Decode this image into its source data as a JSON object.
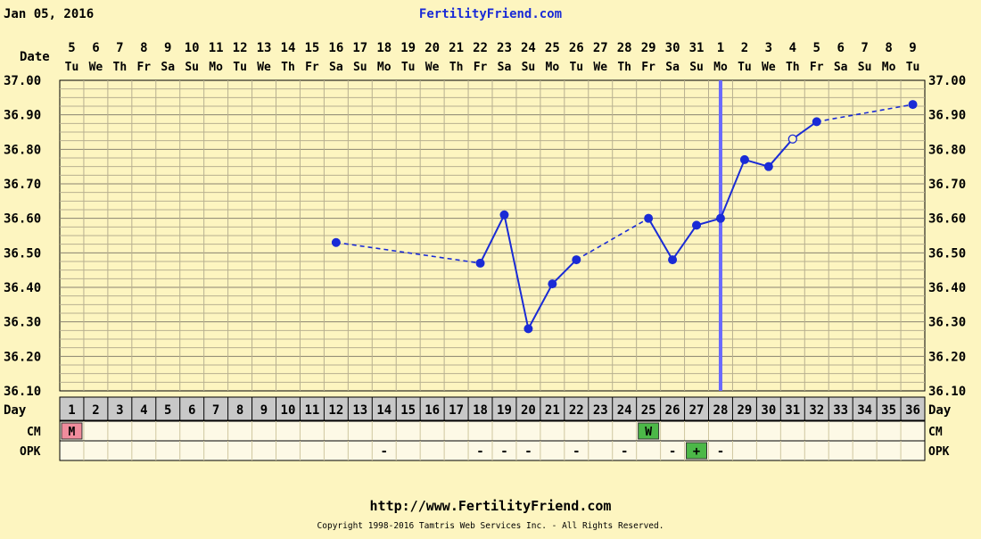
{
  "header": {
    "date": "Jan 05, 2016",
    "site": "FertilityFriend.com"
  },
  "footer": {
    "url": "http://www.FertilityFriend.com",
    "copyright": "Copyright 1998-2016 Tamtris Web Services Inc. - All Rights Reserved."
  },
  "chart_data": {
    "type": "line",
    "title": "",
    "row_labels": {
      "date": "Date",
      "day": "Day",
      "cm": "CM",
      "opk": "OPK"
    },
    "dates": [
      "5",
      "6",
      "7",
      "8",
      "9",
      "10",
      "11",
      "12",
      "13",
      "14",
      "15",
      "16",
      "17",
      "18",
      "19",
      "20",
      "21",
      "22",
      "23",
      "24",
      "25",
      "26",
      "27",
      "28",
      "29",
      "30",
      "31",
      "1",
      "2",
      "3",
      "4",
      "5",
      "6",
      "7",
      "8",
      "9"
    ],
    "weekdays": [
      "Tu",
      "We",
      "Th",
      "Fr",
      "Sa",
      "Su",
      "Mo",
      "Tu",
      "We",
      "Th",
      "Fr",
      "Sa",
      "Su",
      "Mo",
      "Tu",
      "We",
      "Th",
      "Fr",
      "Sa",
      "Su",
      "Mo",
      "Tu",
      "We",
      "Th",
      "Fr",
      "Sa",
      "Su",
      "Mo",
      "Tu",
      "We",
      "Th",
      "Fr",
      "Sa",
      "Su",
      "Mo",
      "Tu"
    ],
    "days": [
      1,
      2,
      3,
      4,
      5,
      6,
      7,
      8,
      9,
      10,
      11,
      12,
      13,
      14,
      15,
      16,
      17,
      18,
      19,
      20,
      21,
      22,
      23,
      24,
      25,
      26,
      27,
      28,
      29,
      30,
      31,
      32,
      33,
      34,
      35,
      36
    ],
    "ylim": [
      36.1,
      37.0
    ],
    "y_ticks": [
      "36.10",
      "36.20",
      "36.30",
      "36.40",
      "36.50",
      "36.60",
      "36.70",
      "36.80",
      "36.90",
      "37.00"
    ],
    "temperatures": [
      {
        "day": 12,
        "temp": 36.53
      },
      {
        "day": 18,
        "temp": 36.47
      },
      {
        "day": 19,
        "temp": 36.61
      },
      {
        "day": 20,
        "temp": 36.28
      },
      {
        "day": 21,
        "temp": 36.41
      },
      {
        "day": 22,
        "temp": 36.48
      },
      {
        "day": 25,
        "temp": 36.6
      },
      {
        "day": 26,
        "temp": 36.48
      },
      {
        "day": 27,
        "temp": 36.58
      },
      {
        "day": 28,
        "temp": 36.6
      },
      {
        "day": 29,
        "temp": 36.77
      },
      {
        "day": 30,
        "temp": 36.75
      },
      {
        "day": 31,
        "temp": 36.83,
        "open": true
      },
      {
        "day": 32,
        "temp": 36.88
      },
      {
        "day": 36,
        "temp": 36.93
      }
    ],
    "solid_segments": [
      [
        18,
        22
      ],
      [
        25,
        32
      ]
    ],
    "dashed_segments": [
      [
        12,
        18
      ],
      [
        22,
        25
      ],
      [
        32,
        36
      ]
    ],
    "coverline_day": 28,
    "cm": [
      {
        "day": 1,
        "value": "M",
        "color": "#f08c9c"
      },
      {
        "day": 25,
        "value": "W",
        "color": "#4cb848"
      }
    ],
    "opk": [
      {
        "day": 14,
        "value": "-"
      },
      {
        "day": 18,
        "value": "-"
      },
      {
        "day": 19,
        "value": "-"
      },
      {
        "day": 20,
        "value": "-"
      },
      {
        "day": 22,
        "value": "-"
      },
      {
        "day": 24,
        "value": "-"
      },
      {
        "day": 26,
        "value": "-"
      },
      {
        "day": 27,
        "value": "+",
        "color": "#4cb848"
      },
      {
        "day": 28,
        "value": "-"
      }
    ],
    "colors": {
      "background": "#fdf5c0",
      "grid": "#b8b090",
      "line": "#1a2bd6",
      "coverline": "#6a6aff",
      "day_row": "#c8c8c8",
      "cell": "#fdf9e6"
    }
  }
}
